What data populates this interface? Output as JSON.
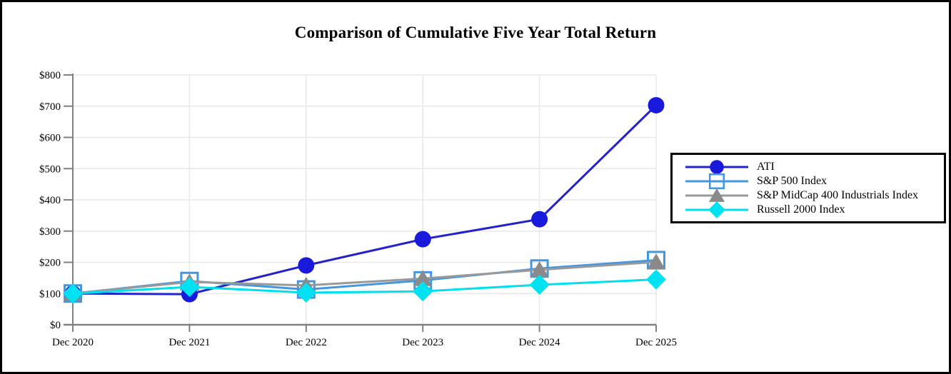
{
  "title": "Comparison of Cumulative Five Year Total Return",
  "chart_data": {
    "type": "line",
    "x_labels": [
      "Dec 2020",
      "Dec 2021",
      "Dec 2022",
      "Dec 2023",
      "Dec 2024",
      "Dec 2025"
    ],
    "y_ticks": [
      0,
      100,
      200,
      300,
      400,
      500,
      600,
      700,
      800
    ],
    "y_tick_labels": [
      "$0",
      "$100",
      "$200",
      "$300",
      "$400",
      "$500",
      "$600",
      "$700",
      "$800"
    ],
    "ylim": [
      0,
      800
    ],
    "grid": true,
    "legend_position": "right",
    "series": [
      {
        "name": "ATI",
        "marker": "circle",
        "color": "#2323CC",
        "marker_color": "#1A1ADD",
        "values": [
          100,
          98,
          190,
          274,
          338,
          703
        ]
      },
      {
        "name": "S&P 500 Index",
        "marker": "open-square",
        "color": "#4397E0",
        "marker_color": "#4397E0",
        "values": [
          100,
          140,
          113,
          142,
          180,
          207
        ]
      },
      {
        "name": "S&P MidCap 400 Industrials Index",
        "marker": "triangle",
        "color": "#999999",
        "marker_color": "#8A8A8A",
        "values": [
          100,
          137,
          126,
          148,
          176,
          201
        ]
      },
      {
        "name": "Russell 2000 Index",
        "marker": "diamond",
        "color": "#00DFEF",
        "marker_color": "#00E2F2",
        "values": [
          100,
          121,
          103,
          107,
          128,
          145
        ]
      }
    ],
    "axis_color": "#808080",
    "grid_color": "#E8E8E8",
    "text_color": "#000000"
  }
}
